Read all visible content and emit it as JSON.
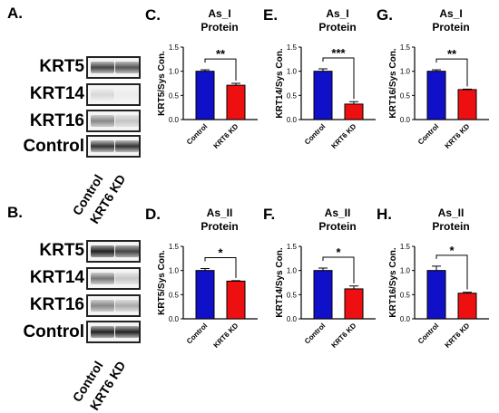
{
  "left": {
    "blot_a": {
      "letter": "A.",
      "rows": [
        {
          "label": "KRT5"
        },
        {
          "label": "KRT14"
        },
        {
          "label": "KRT16"
        },
        {
          "label": "Control"
        }
      ],
      "lanes": [
        "Control",
        "KRT6 KD"
      ]
    },
    "blot_b": {
      "letter": "B.",
      "rows": [
        {
          "label": "KRT5"
        },
        {
          "label": "KRT14"
        },
        {
          "label": "KRT16"
        },
        {
          "label": "Control"
        }
      ],
      "lanes": [
        "Control",
        "KRT6 KD"
      ]
    }
  },
  "chart_data": [
    {
      "panel": "C.",
      "type": "bar",
      "title": "As_I",
      "subtitle": "Protein",
      "ylabel": "KRT5/Sys Con.",
      "categories": [
        "Control",
        "KRT6 KD"
      ],
      "values": [
        1.0,
        0.71
      ],
      "errors": [
        0.03,
        0.04
      ],
      "ylim": [
        0,
        1.5
      ],
      "yticks": [
        "0.0",
        "0.5",
        "1.0",
        "1.5"
      ],
      "significance": "**",
      "colors": [
        "#1010c8",
        "#ee1010"
      ]
    },
    {
      "panel": "E.",
      "type": "bar",
      "title": "As_I",
      "subtitle": "Protein",
      "ylabel": "KRT14/Sys Con.",
      "categories": [
        "Control",
        "KRT6 KD"
      ],
      "values": [
        1.0,
        0.32
      ],
      "errors": [
        0.05,
        0.05
      ],
      "ylim": [
        0,
        1.5
      ],
      "yticks": [
        "0.0",
        "0.5",
        "1.0",
        "1.5"
      ],
      "significance": "***",
      "colors": [
        "#1010c8",
        "#ee1010"
      ]
    },
    {
      "panel": "G.",
      "type": "bar",
      "title": "As_I",
      "subtitle": "Protein",
      "ylabel": "KRT16/Sys Con.",
      "categories": [
        "Control",
        "KRT6 KD"
      ],
      "values": [
        1.0,
        0.62
      ],
      "errors": [
        0.03,
        0.01
      ],
      "ylim": [
        0,
        1.5
      ],
      "yticks": [
        "0.0",
        "0.5",
        "1.0",
        "1.5"
      ],
      "significance": "**",
      "colors": [
        "#1010c8",
        "#ee1010"
      ]
    },
    {
      "panel": "D.",
      "type": "bar",
      "title": "As_II",
      "subtitle": "Protein",
      "ylabel": "KRT5/Sys Con.",
      "categories": [
        "Control",
        "KRT6 KD"
      ],
      "values": [
        1.0,
        0.78
      ],
      "errors": [
        0.04,
        0.01
      ],
      "ylim": [
        0,
        1.5
      ],
      "yticks": [
        "0.0",
        "0.5",
        "1.0",
        "1.5"
      ],
      "significance": "*",
      "colors": [
        "#1010c8",
        "#ee1010"
      ]
    },
    {
      "panel": "F.",
      "type": "bar",
      "title": "As_II",
      "subtitle": "Protein",
      "ylabel": "KRT14/Sys Con.",
      "categories": [
        "Control",
        "KRT6 KD"
      ],
      "values": [
        1.0,
        0.62
      ],
      "errors": [
        0.05,
        0.06
      ],
      "ylim": [
        0,
        1.5
      ],
      "yticks": [
        "0.0",
        "0.5",
        "1.0",
        "1.5"
      ],
      "significance": "*",
      "colors": [
        "#1010c8",
        "#ee1010"
      ]
    },
    {
      "panel": "H.",
      "type": "bar",
      "title": "As_II",
      "subtitle": "Protein",
      "ylabel": "KRT16/Sys Con.",
      "categories": [
        "Control",
        "KRT6 KD"
      ],
      "values": [
        1.0,
        0.53
      ],
      "errors": [
        0.09,
        0.02
      ],
      "ylim": [
        0,
        1.5
      ],
      "yticks": [
        "0.0",
        "0.5",
        "1.0",
        "1.5"
      ],
      "significance": "*",
      "colors": [
        "#1010c8",
        "#ee1010"
      ]
    }
  ]
}
